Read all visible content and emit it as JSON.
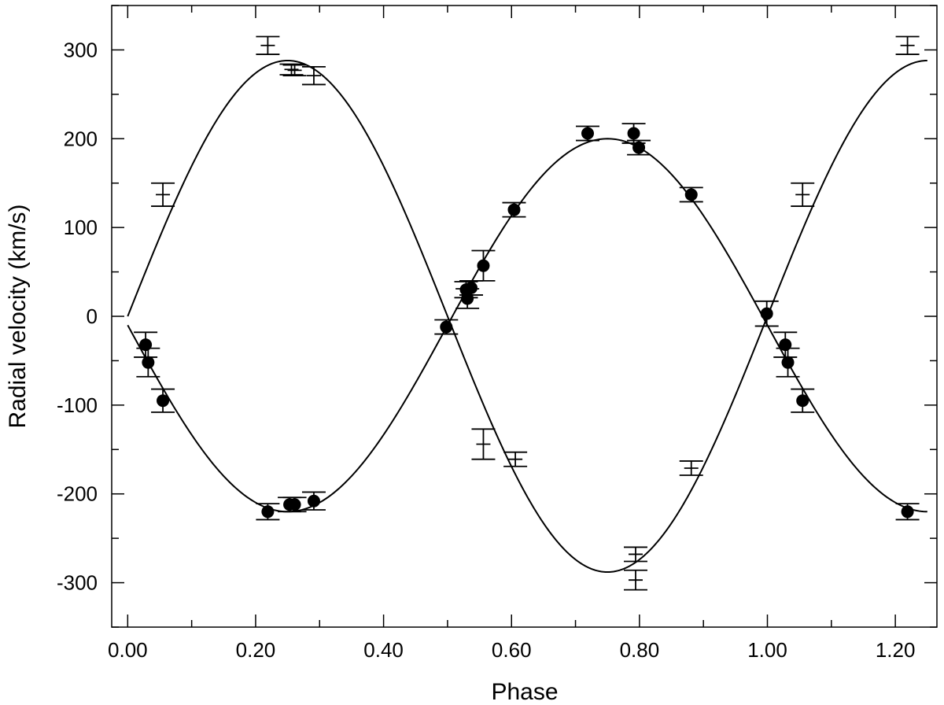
{
  "chart_data": {
    "type": "scatter",
    "title": "",
    "xlabel": "Phase",
    "ylabel": "Radial velocity (km/s)",
    "xlim": [
      -0.025,
      1.265
    ],
    "ylim": [
      -350,
      350
    ],
    "x_ticks": [
      0.0,
      0.2,
      0.4,
      0.6,
      0.8,
      1.0,
      1.2
    ],
    "x_tick_labels": [
      "0.00",
      "0.20",
      "0.40",
      "0.60",
      "0.80",
      "1.00",
      "1.20"
    ],
    "x_minor_step": 0.1,
    "y_ticks": [
      -300,
      -200,
      -100,
      0,
      100,
      200,
      300
    ],
    "y_tick_labels": [
      "-300",
      "-200",
      "-100",
      "0",
      "100",
      "200",
      "300"
    ],
    "y_minor_step": 50,
    "grid": false,
    "legend": "none",
    "colors": {
      "ink": "#000000",
      "background": "#ffffff"
    },
    "series": [
      {
        "marker": "filled-circle",
        "points": [
          {
            "x": 0.028,
            "y": -32,
            "err": 14
          },
          {
            "x": 0.032,
            "y": -52,
            "err": 16
          },
          {
            "x": 0.055,
            "y": -95,
            "err": 13
          },
          {
            "x": 0.219,
            "y": -220,
            "err": 9
          },
          {
            "x": 0.253,
            "y": -212,
            "err": 8
          },
          {
            "x": 0.261,
            "y": -212,
            "err": 8
          },
          {
            "x": 0.291,
            "y": -208,
            "err": 10
          },
          {
            "x": 0.498,
            "y": -12,
            "err": 8
          },
          {
            "x": 0.529,
            "y": 30,
            "err": 9
          },
          {
            "x": 0.531,
            "y": 20,
            "err": 11
          },
          {
            "x": 0.537,
            "y": 32,
            "err": 8
          },
          {
            "x": 0.556,
            "y": 57,
            "err": 17
          },
          {
            "x": 0.604,
            "y": 120,
            "err": 8
          },
          {
            "x": 0.719,
            "y": 206,
            "err": 8
          },
          {
            "x": 0.791,
            "y": 206,
            "err": 11
          },
          {
            "x": 0.799,
            "y": 190,
            "err": 8
          },
          {
            "x": 0.881,
            "y": 137,
            "err": 8
          },
          {
            "x": 0.999,
            "y": 3,
            "err": 14
          },
          {
            "x": 1.028,
            "y": -32,
            "err": 14
          },
          {
            "x": 1.032,
            "y": -52,
            "err": 16
          },
          {
            "x": 1.055,
            "y": -95,
            "err": 13
          },
          {
            "x": 1.219,
            "y": -220,
            "err": 9
          }
        ]
      },
      {
        "marker": "error-bar-only",
        "points": [
          {
            "x": 0.055,
            "y": 137,
            "err": 13
          },
          {
            "x": 0.219,
            "y": 305,
            "err": 10
          },
          {
            "x": 0.256,
            "y": 278,
            "err": 6
          },
          {
            "x": 0.261,
            "y": 277,
            "err": 6
          },
          {
            "x": 0.291,
            "y": 271,
            "err": 10
          },
          {
            "x": 0.556,
            "y": -144,
            "err": 17
          },
          {
            "x": 0.606,
            "y": -161,
            "err": 8
          },
          {
            "x": 0.794,
            "y": -297,
            "err": 11
          },
          {
            "x": 0.794,
            "y": -268,
            "err": 8
          },
          {
            "x": 0.881,
            "y": -171,
            "err": 8
          },
          {
            "x": 1.055,
            "y": 137,
            "err": 13
          },
          {
            "x": 1.219,
            "y": 305,
            "err": 10
          }
        ]
      }
    ],
    "fit_curves": [
      {
        "function": "gamma + K*sin(2*pi*phase)",
        "gamma": 0,
        "K": 288,
        "x_range": [
          0.0,
          1.25
        ]
      },
      {
        "function": "gamma - K*sin(2*pi*phase)",
        "gamma": -10,
        "K": 210,
        "x_range": [
          0.0,
          1.25
        ]
      }
    ]
  }
}
